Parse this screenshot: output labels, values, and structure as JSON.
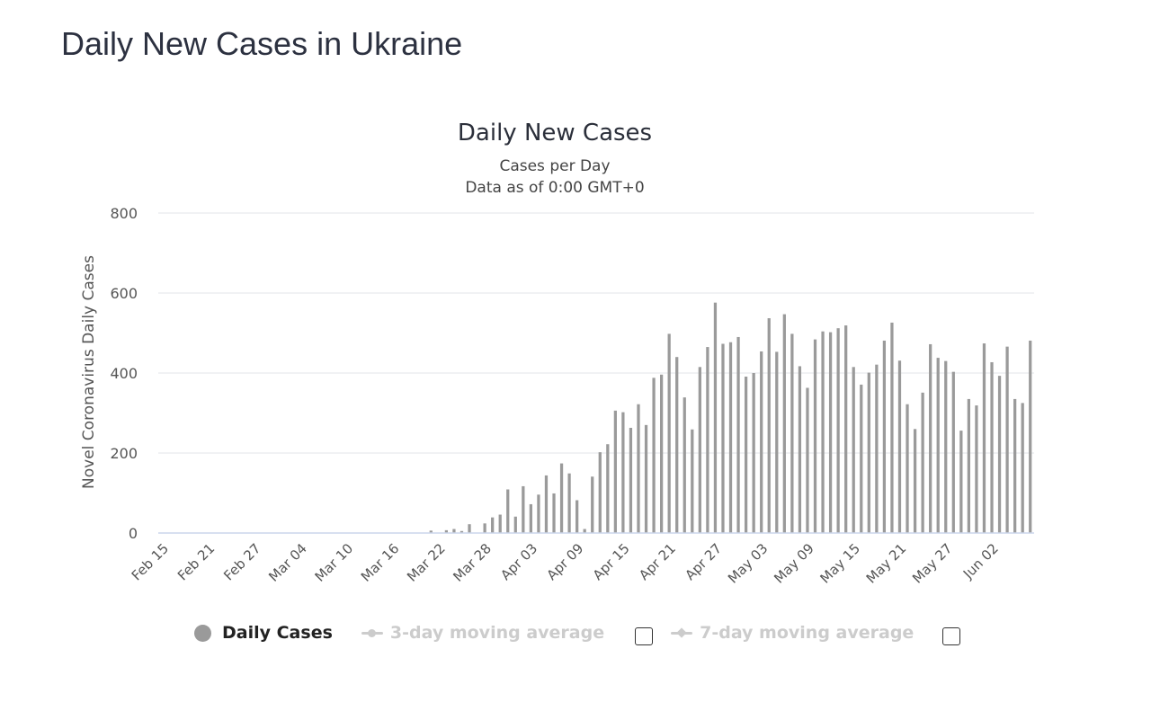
{
  "page": {
    "title": "Daily New Cases in Ukraine"
  },
  "chart_data": {
    "type": "bar",
    "title": "Daily New Cases",
    "subtitle_1": "Cases per Day",
    "subtitle_2": "Data as of 0:00 GMT+0",
    "ylabel": "Novel Coronavirus Daily Cases",
    "xlabel": "",
    "ylim": [
      0,
      800
    ],
    "y_ticks": [
      0,
      200,
      400,
      600,
      800
    ],
    "grid": true,
    "bar_color": "#9a9a9a",
    "x_tick_labels": [
      "Feb 15",
      "Feb 21",
      "Feb 27",
      "Mar 04",
      "Mar 10",
      "Mar 16",
      "Mar 22",
      "Mar 28",
      "Apr 03",
      "Apr 09",
      "Apr 15",
      "Apr 21",
      "Apr 27",
      "May 03",
      "May 09",
      "May 15",
      "May 21",
      "May 27",
      "Jun 02"
    ],
    "x_tick_every": 6,
    "series": [
      {
        "name": "Daily Cases",
        "values": [
          0,
          0,
          0,
          0,
          0,
          0,
          0,
          0,
          0,
          0,
          0,
          0,
          0,
          0,
          0,
          0,
          0,
          0,
          0,
          0,
          0,
          0,
          0,
          0,
          0,
          0,
          0,
          0,
          0,
          0,
          0,
          0,
          0,
          0,
          0,
          6,
          0,
          7,
          10,
          5,
          22,
          0,
          24,
          39,
          46,
          109,
          41,
          117,
          72,
          96,
          144,
          99,
          174,
          149,
          82,
          10,
          141,
          202,
          222,
          306,
          302,
          263,
          322,
          270,
          388,
          396,
          498,
          440,
          339,
          259,
          415,
          465,
          576,
          473,
          477,
          490,
          391,
          400,
          454,
          537,
          453,
          547,
          498,
          417,
          363,
          484,
          504,
          502,
          512,
          519,
          415,
          371,
          401,
          421,
          481,
          526,
          431,
          322,
          260,
          351,
          472,
          438,
          430,
          403,
          256,
          335,
          319,
          474,
          427,
          393,
          466,
          335,
          325,
          481
        ]
      }
    ],
    "legend_placement": "bottom"
  },
  "legend": {
    "items": [
      {
        "label": "Daily Cases",
        "color": "#9a9a9a",
        "icon": "circle-marker",
        "active": true
      },
      {
        "label": "3-day moving average",
        "color": "#cccccc",
        "icon": "line-circle-marker",
        "active": false
      },
      {
        "label": "7-day moving average",
        "color": "#cccccc",
        "icon": "line-diamond-marker",
        "active": false
      }
    ]
  }
}
